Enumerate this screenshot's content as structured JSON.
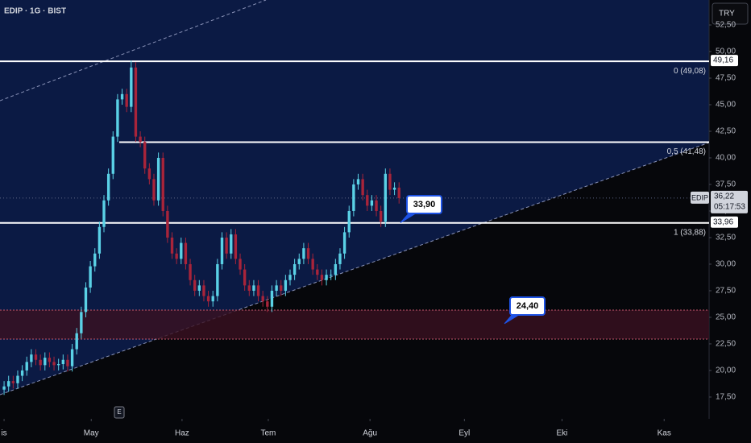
{
  "header": {
    "symbol": "EDIP · 1G · BIST",
    "currency": "TRY"
  },
  "chart_data": {
    "type": "candlestick",
    "x": [
      1,
      2,
      3,
      4,
      5,
      6,
      7,
      8,
      9,
      10,
      11,
      12,
      13,
      14,
      15,
      16,
      17,
      18,
      19,
      20,
      21,
      22,
      23,
      24,
      25,
      26,
      27,
      28,
      29,
      30,
      31,
      32,
      33,
      34,
      35,
      36,
      37,
      38,
      39,
      40,
      41,
      42,
      43,
      44,
      45,
      46,
      47,
      48,
      49,
      50,
      51,
      52,
      53,
      54,
      55,
      56,
      57,
      58,
      59,
      60,
      61,
      62,
      63,
      64,
      65,
      66,
      67,
      68,
      69,
      70,
      71,
      72,
      73,
      74,
      75,
      76,
      77,
      78,
      79,
      80,
      81,
      82,
      83,
      84,
      85,
      86,
      87,
      88
    ],
    "open": [
      18.2,
      18.5,
      19.0,
      18.8,
      19.5,
      20.0,
      20.8,
      21.5,
      21.0,
      20.5,
      21.2,
      20.8,
      20.5,
      20.6,
      21.0,
      20.4,
      22.0,
      23.5,
      25.5,
      27.8,
      29.8,
      31.0,
      33.5,
      36.0,
      38.5,
      42.0,
      45.5,
      46.0,
      44.8,
      48.5,
      42.0,
      41.5,
      39.0,
      38.0,
      36.0,
      40.0,
      35.0,
      32.5,
      31.0,
      30.5,
      32.0,
      30.0,
      28.5,
      27.5,
      28.0,
      27.0,
      26.5,
      27.0,
      30.0,
      32.5,
      31.0,
      32.8,
      30.5,
      29.5,
      28.0,
      27.5,
      28.0,
      27.0,
      26.5,
      26.0,
      27.5,
      28.0,
      27.5,
      28.5,
      29.0,
      30.0,
      30.5,
      31.5,
      30.5,
      29.5,
      29.0,
      28.5,
      29.0,
      29.0,
      30.0,
      31.0,
      33.0,
      35.0,
      37.5,
      38.0,
      36.5,
      35.5,
      36.0,
      35.0,
      34.0,
      38.5,
      37.0,
      37.2
    ],
    "high": [
      19.0,
      19.5,
      19.5,
      20.0,
      20.5,
      21.3,
      22.0,
      22.0,
      21.5,
      21.7,
      21.7,
      21.3,
      21.1,
      21.5,
      21.5,
      22.5,
      24.0,
      26.0,
      28.3,
      30.3,
      31.5,
      34.0,
      36.5,
      39.0,
      42.5,
      46.0,
      46.5,
      46.5,
      49.16,
      49.0,
      42.5,
      42.0,
      39.5,
      38.5,
      40.5,
      40.5,
      35.5,
      33.0,
      31.5,
      32.5,
      32.5,
      30.5,
      29.0,
      28.5,
      28.5,
      27.5,
      27.5,
      30.5,
      33.0,
      33.0,
      33.3,
      33.3,
      31.0,
      30.0,
      28.5,
      28.5,
      28.5,
      27.5,
      27.0,
      28.0,
      28.5,
      28.5,
      29.0,
      29.5,
      30.5,
      31.0,
      32.0,
      32.0,
      31.0,
      30.0,
      29.5,
      29.5,
      29.5,
      30.5,
      31.5,
      33.5,
      35.5,
      38.0,
      38.5,
      38.5,
      37.0,
      36.5,
      36.5,
      35.5,
      39.0,
      39.0,
      37.7,
      37.7
    ],
    "low": [
      17.7,
      18.0,
      18.3,
      18.3,
      19.0,
      19.5,
      20.3,
      20.5,
      20.0,
      20.0,
      20.3,
      20.0,
      20.0,
      20.1,
      19.9,
      19.9,
      21.5,
      23.0,
      25.0,
      27.3,
      29.3,
      30.5,
      33.0,
      35.5,
      38.0,
      41.5,
      45.0,
      44.3,
      44.3,
      41.5,
      41.0,
      38.5,
      37.5,
      35.5,
      35.5,
      34.5,
      32.0,
      30.5,
      30.0,
      30.0,
      29.5,
      28.0,
      27.0,
      27.0,
      26.5,
      26.0,
      26.0,
      26.5,
      29.5,
      30.5,
      30.5,
      30.0,
      29.0,
      27.5,
      27.0,
      27.0,
      26.5,
      26.0,
      25.5,
      25.5,
      27.0,
      27.0,
      27.0,
      28.0,
      28.5,
      29.5,
      30.0,
      30.0,
      29.0,
      28.5,
      28.0,
      28.0,
      28.5,
      28.5,
      29.5,
      30.5,
      32.5,
      34.5,
      37.0,
      36.0,
      35.0,
      35.0,
      34.5,
      33.5,
      33.5,
      36.5,
      36.5,
      35.7
    ],
    "close": [
      18.5,
      19.0,
      18.8,
      19.5,
      20.0,
      20.8,
      21.5,
      21.0,
      20.5,
      21.2,
      20.8,
      20.5,
      20.6,
      21.0,
      20.4,
      22.0,
      23.5,
      25.5,
      27.8,
      29.8,
      31.0,
      33.5,
      36.0,
      38.5,
      42.0,
      45.5,
      46.0,
      44.8,
      48.5,
      42.0,
      41.5,
      39.0,
      38.0,
      36.0,
      40.0,
      35.0,
      32.5,
      31.0,
      30.5,
      32.0,
      30.0,
      28.5,
      27.5,
      28.0,
      27.0,
      26.5,
      27.0,
      30.0,
      32.5,
      31.0,
      32.8,
      30.5,
      29.5,
      28.0,
      27.5,
      28.0,
      27.0,
      26.5,
      26.0,
      27.5,
      28.0,
      27.5,
      28.5,
      29.0,
      30.0,
      30.5,
      31.5,
      30.5,
      29.5,
      29.0,
      28.5,
      29.0,
      29.0,
      30.0,
      31.0,
      33.0,
      35.0,
      37.5,
      38.0,
      36.5,
      35.5,
      36.0,
      35.0,
      34.0,
      38.5,
      37.0,
      37.2,
      36.22
    ],
    "up_color": "#5ad1e6",
    "down_color": "#a8243a",
    "xlim": [
      0.1,
      156.3
    ],
    "ylim": [
      15.45,
      54.85
    ],
    "xticks": [
      {
        "value": 1,
        "label": "is"
      },
      {
        "value": 20.2,
        "label": "May"
      },
      {
        "value": 40.2,
        "label": "Haz"
      },
      {
        "value": 59.2,
        "label": "Tem"
      },
      {
        "value": 81.6,
        "label": "Ağu"
      },
      {
        "value": 102.4,
        "label": "Eyl"
      },
      {
        "value": 123.9,
        "label": "Eki"
      },
      {
        "value": 146.4,
        "label": "Kas"
      }
    ],
    "yticks": [
      {
        "value": 17.5,
        "label": "17,50"
      },
      {
        "value": 20,
        "label": "20,00"
      },
      {
        "value": 22.5,
        "label": "22,50"
      },
      {
        "value": 25,
        "label": "25,00"
      },
      {
        "value": 27.5,
        "label": "27,50"
      },
      {
        "value": 30,
        "label": "30,00"
      },
      {
        "value": 32.5,
        "label": "32,50"
      },
      {
        "value": 35,
        "label": "35,00"
      },
      {
        "value": 37.5,
        "label": "37,50"
      },
      {
        "value": 40,
        "label": "40,00"
      },
      {
        "value": 42.5,
        "label": "42,50"
      },
      {
        "value": 45,
        "label": "45,00"
      },
      {
        "value": 47.5,
        "label": "47,50"
      },
      {
        "value": 50,
        "label": "50,00"
      },
      {
        "value": 52.5,
        "label": "52,50"
      }
    ],
    "levels": [
      {
        "label": "0 (49,08)",
        "value": 49.08
      },
      {
        "label": "0,5 (41,48)",
        "value": 41.48
      },
      {
        "label": "1 (33,88)",
        "value": 33.88
      }
    ],
    "price_tags": [
      {
        "label": "49,16",
        "value": 49.16
      },
      {
        "label": "33,96",
        "value": 33.96
      }
    ],
    "last_price": {
      "name": "EDIP",
      "label": "36,22",
      "value": 36.22,
      "countdown": "05:17:53"
    },
    "callouts": [
      {
        "label": "33,90",
        "value": 33.9
      },
      {
        "label": "24,40",
        "value": 24.4
      }
    ],
    "zone": [
      22.95,
      25.68
    ],
    "event": "E"
  }
}
